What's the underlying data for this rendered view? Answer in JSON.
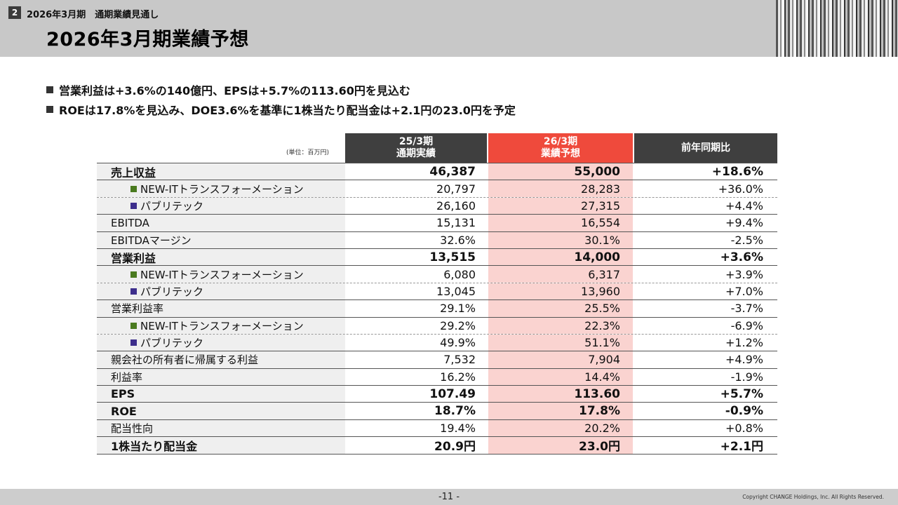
{
  "header": {
    "section_number": "2",
    "section_title": "2026年3月期　通期業績見通し",
    "page_title": "2026年3月期業績予想"
  },
  "bullets": [
    "営業利益は+3.6%の140億円、EPSは+5.7%の113.60円を見込む",
    "ROEは17.8%を見込み、DOE3.6%を基準に1株当たり配当金は+2.1円の23.0円を予定"
  ],
  "table": {
    "unit": "(単位：百万円)",
    "col1": [
      "25/3期",
      "通期実績"
    ],
    "col2": [
      "26/3期",
      "業績予想"
    ],
    "col3": "前年同期比",
    "rows": [
      {
        "label": "売上収益",
        "v1": "46,387",
        "v2": "55,000",
        "v3": "+18.6%"
      },
      {
        "label": "NEW-ITトランスフォーメーション",
        "v1": "20,797",
        "v2": "28,283",
        "v3": "+36.0%"
      },
      {
        "label": "パブリテック",
        "v1": "26,160",
        "v2": "27,315",
        "v3": "+4.4%"
      },
      {
        "label": "EBITDA",
        "v1": "15,131",
        "v2": "16,554",
        "v3": "+9.4%"
      },
      {
        "label": "EBITDAマージン",
        "v1": "32.6%",
        "v2": "30.1%",
        "v3": "-2.5%"
      },
      {
        "label": "営業利益",
        "v1": "13,515",
        "v2": "14,000",
        "v3": "+3.6%"
      },
      {
        "label": "NEW-ITトランスフォーメーション",
        "v1": "6,080",
        "v2": "6,317",
        "v3": "+3.9%"
      },
      {
        "label": "パブリテック",
        "v1": "13,045",
        "v2": "13,960",
        "v3": "+7.0%"
      },
      {
        "label": "営業利益率",
        "v1": "29.1%",
        "v2": "25.5%",
        "v3": "-3.7%"
      },
      {
        "label": "NEW-ITトランスフォーメーション",
        "v1": "29.2%",
        "v2": "22.3%",
        "v3": "-6.9%"
      },
      {
        "label": "パブリテック",
        "v1": "49.9%",
        "v2": "51.1%",
        "v3": "+1.2%"
      },
      {
        "label": "親会社の所有者に帰属する利益",
        "v1": "7,532",
        "v2": "7,904",
        "v3": "+4.9%"
      },
      {
        "label": "利益率",
        "v1": "16.2%",
        "v2": "14.4%",
        "v3": "-1.9%"
      },
      {
        "label": "EPS",
        "v1": "107.49",
        "v2": "113.60",
        "v3": "+5.7%"
      },
      {
        "label": "ROE",
        "v1": "18.7%",
        "v2": "17.8%",
        "v3": "-0.9%"
      },
      {
        "label": "配当性向",
        "v1": "19.4%",
        "v2": "20.2%",
        "v3": "+0.8%"
      },
      {
        "label": "1株当たり配当金",
        "v1": "20.9円",
        "v2": "23.0円",
        "v3": "+2.1円"
      }
    ]
  },
  "colors": {
    "forecast_header": "#ef4a3c",
    "forecast_bg": "#fad3d0",
    "marker_new_it": "#4a7a1f",
    "marker_publitech": "#3d2e8c"
  },
  "footer": {
    "page_number": "-11 -",
    "copyright": "Copyright CHANGE Holdings, Inc. All Rights Reserved."
  }
}
